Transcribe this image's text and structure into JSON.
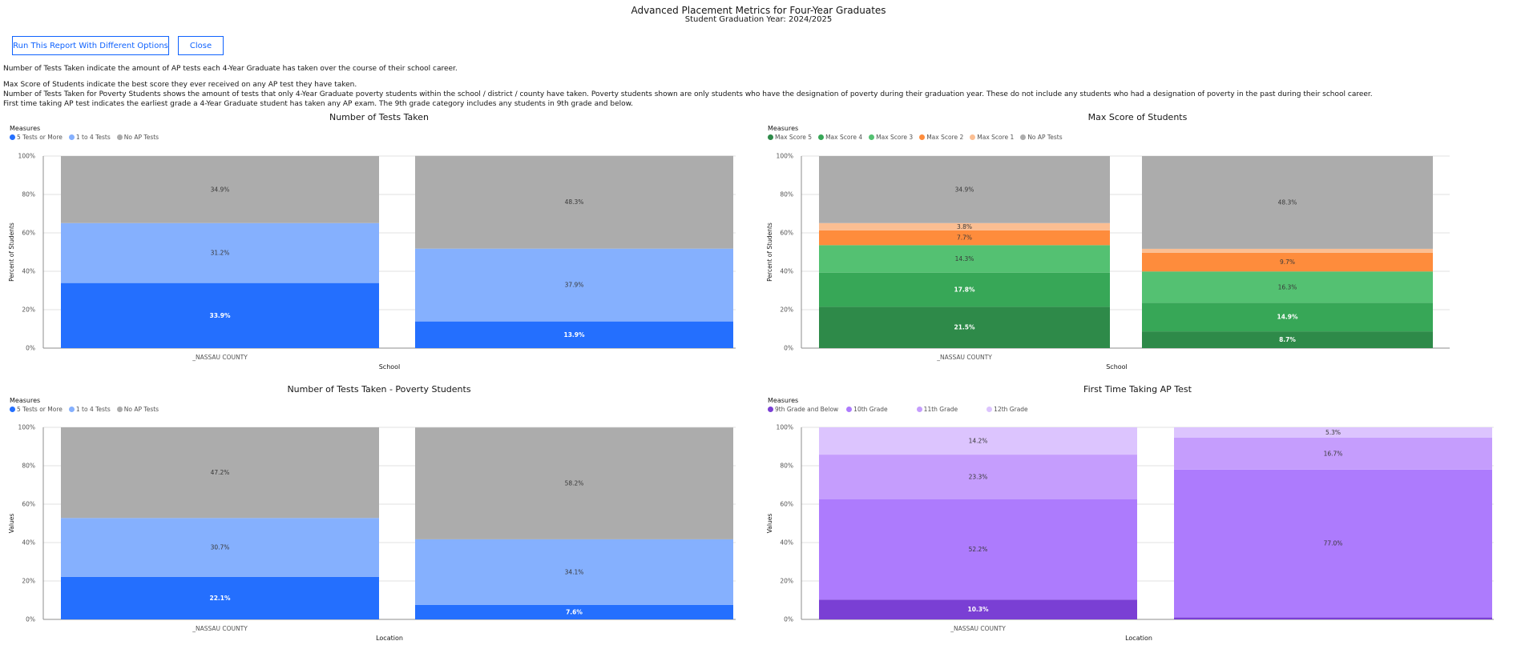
{
  "header": {
    "title": "Advanced Placement Metrics for Four-Year Graduates",
    "subtitle": "Student Graduation Year: 2024/2025"
  },
  "buttons": {
    "run_label": "Run This Report With Different Options",
    "close_label": "Close"
  },
  "descriptions": [
    "Number of Tests Taken indicate the amount of AP tests each 4-Year Graduate has taken over the course of their school career.",
    "Max Score of Students indicate the best score they ever received on any AP test they have taken.",
    "Number of Tests Taken for Poverty Students shows the amount of tests that only 4-Year Graduate poverty students within the school / district / county have taken. Poverty students shown are only students who have the designation of poverty during their graduation year. These do not include any students who had a designation of poverty in the past during their school career.",
    "First time taking AP test indicates the earliest grade a 4-Year Graduate student has taken any AP exam. The 9th grade category includes any students in 9th grade and below."
  ],
  "chart_data": [
    {
      "type": "bar",
      "stacked": true,
      "title": "Number of Tests Taken",
      "legend_title": "Measures",
      "xlabel": "School",
      "ylabel": "Percent of Students",
      "ylim": [
        0,
        100
      ],
      "yticks": [
        "0%",
        "20%",
        "40%",
        "60%",
        "80%",
        "100%"
      ],
      "categories": [
        "_NASSAU COUNTY",
        ""
      ],
      "grid": true,
      "legend_position": "top-left",
      "series": [
        {
          "name": "5 Tests or More",
          "color": "#246ffe",
          "values": [
            33.9,
            13.9
          ],
          "labels": [
            "33.9%",
            "13.9%"
          ],
          "label_color": "#ffffff"
        },
        {
          "name": "1 to 4 Tests",
          "color": "#85b0fe",
          "values": [
            31.2,
            37.9
          ],
          "labels": [
            "31.2%",
            "37.9%"
          ],
          "label_color": "#393939"
        },
        {
          "name": "No AP Tests",
          "color": "#acacac",
          "values": [
            34.9,
            48.3
          ],
          "labels": [
            "34.9%",
            "48.3%"
          ],
          "label_color": "#393939"
        }
      ]
    },
    {
      "type": "bar",
      "stacked": true,
      "title": "Max Score of Students",
      "legend_title": "Measures",
      "xlabel": "School",
      "ylabel": "Percent of Students",
      "ylim": [
        0,
        100
      ],
      "yticks": [
        "0%",
        "20%",
        "40%",
        "60%",
        "80%",
        "100%"
      ],
      "categories": [
        "_NASSAU COUNTY",
        ""
      ],
      "grid": true,
      "legend_position": "top-left",
      "series": [
        {
          "name": "Max Score 5",
          "color": "#2e8a49",
          "values": [
            21.5,
            8.7
          ],
          "labels": [
            "21.5%",
            "8.7%"
          ],
          "label_color": "#ffffff"
        },
        {
          "name": "Max Score 4",
          "color": "#37a757",
          "values": [
            17.8,
            14.9
          ],
          "labels": [
            "17.8%",
            "14.9%"
          ],
          "label_color": "#ffffff"
        },
        {
          "name": "Max Score 3",
          "color": "#54c172",
          "values": [
            14.3,
            16.3
          ],
          "labels": [
            "14.3%",
            "16.3%"
          ],
          "label_color": "#393939"
        },
        {
          "name": "Max Score 2",
          "color": "#fe8c3c",
          "values": [
            7.7,
            9.7
          ],
          "labels": [
            "7.7%",
            "9.7%"
          ],
          "label_color": "#393939"
        },
        {
          "name": "Max Score 1",
          "color": "#fbbe92",
          "values": [
            3.8,
            2.1
          ],
          "labels": [
            "3.8%",
            ""
          ],
          "label_color": "#393939"
        },
        {
          "name": "No AP Tests",
          "color": "#acacac",
          "values": [
            34.9,
            48.3
          ],
          "labels": [
            "34.9%",
            "48.3%"
          ],
          "label_color": "#393939"
        }
      ]
    },
    {
      "type": "bar",
      "stacked": true,
      "title": "Number of Tests Taken - Poverty Students",
      "legend_title": "Measures",
      "xlabel": "Location",
      "ylabel": "Values",
      "ylim": [
        0,
        100
      ],
      "yticks": [
        "0%",
        "20%",
        "40%",
        "60%",
        "80%",
        "100%"
      ],
      "categories": [
        "_NASSAU COUNTY",
        ""
      ],
      "grid": true,
      "legend_position": "top-left",
      "series": [
        {
          "name": "5 Tests or More",
          "color": "#246ffe",
          "values": [
            22.1,
            7.6
          ],
          "labels": [
            "22.1%",
            "7.6%"
          ],
          "label_color": "#ffffff"
        },
        {
          "name": "1 to 4 Tests",
          "color": "#85b0fe",
          "values": [
            30.7,
            34.1
          ],
          "labels": [
            "30.7%",
            "34.1%"
          ],
          "label_color": "#393939"
        },
        {
          "name": "No AP Tests",
          "color": "#acacac",
          "values": [
            47.2,
            58.2
          ],
          "labels": [
            "47.2%",
            "58.2%"
          ],
          "label_color": "#393939"
        }
      ]
    },
    {
      "type": "bar",
      "stacked": true,
      "title": "First Time Taking AP Test",
      "legend_title": "Measures",
      "xlabel": "Location",
      "ylabel": "Values",
      "ylim": [
        0,
        100
      ],
      "yticks": [
        "0%",
        "20%",
        "40%",
        "60%",
        "80%",
        "100%"
      ],
      "categories": [
        "_NASSAU COUNTY",
        ""
      ],
      "grid": true,
      "legend_position": "top-left",
      "series": [
        {
          "name": "9th Grade and Below",
          "color": "#7a3fd4",
          "values": [
            10.3,
            1.0
          ],
          "labels": [
            "10.3%",
            ""
          ],
          "label_color": "#ffffff"
        },
        {
          "name": "10th Grade",
          "color": "#ad7bfd",
          "values": [
            52.2,
            77.0
          ],
          "labels": [
            "52.2%",
            "77.0%"
          ],
          "label_color": "#393939"
        },
        {
          "name": "11th Grade",
          "color": "#c59dfd",
          "values": [
            23.3,
            16.7
          ],
          "labels": [
            "23.3%",
            "16.7%"
          ],
          "label_color": "#393939"
        },
        {
          "name": "12th Grade",
          "color": "#dcc4fe",
          "values": [
            14.2,
            5.3
          ],
          "labels": [
            "14.2%",
            "5.3%"
          ],
          "label_color": "#393939"
        }
      ]
    }
  ]
}
